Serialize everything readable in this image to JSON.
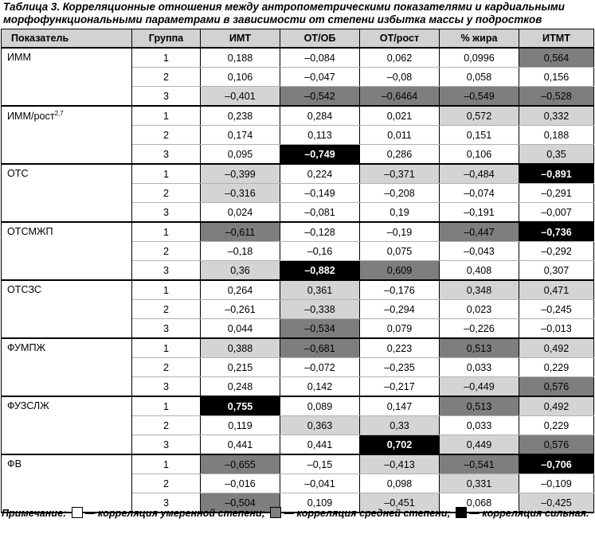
{
  "caption": "Таблица 3. Корреляционные отношения между антропометрическими показателями и кардиальными морфофункциональными параметрами в зависимости от степени избытка массы у подростков",
  "headers": [
    "Показатель",
    "Группа",
    "ИМТ",
    "ОТ/ОБ",
    "ОТ/рост",
    "% жира",
    "ИТМТ"
  ],
  "levels": {
    "moderate": "#d4d4d4",
    "medium": "#7e7e7e",
    "strong": "#000000"
  },
  "rows": [
    {
      "indicator": "ИММ",
      "sup": "",
      "groups": [
        {
          "group": "1",
          "values": [
            "0,188",
            "–0,084",
            "0,062",
            "0,0996",
            "0,564"
          ],
          "levels": [
            "",
            "",
            "",
            "",
            "medium"
          ]
        },
        {
          "group": "2",
          "values": [
            "0,106",
            "–0,047",
            "–0,08",
            "0,058",
            "0,156"
          ],
          "levels": [
            "",
            "",
            "",
            "",
            ""
          ]
        },
        {
          "group": "3",
          "values": [
            "–0,401",
            "–0,542",
            "–0,6464",
            "–0,549",
            "–0,528"
          ],
          "levels": [
            "moderate",
            "medium",
            "medium",
            "medium",
            "medium"
          ]
        }
      ]
    },
    {
      "indicator": "ИММ/рост",
      "sup": "2,7",
      "groups": [
        {
          "group": "1",
          "values": [
            "0,238",
            "0,284",
            "0,021",
            "0,572",
            "0,332"
          ],
          "levels": [
            "",
            "",
            "",
            "moderate",
            "moderate"
          ]
        },
        {
          "group": "2",
          "values": [
            "0,174",
            "0,113",
            "0,011",
            "0,151",
            "0,188"
          ],
          "levels": [
            "",
            "",
            "",
            "",
            ""
          ]
        },
        {
          "group": "3",
          "values": [
            "0,095",
            "–0,749",
            "0,286",
            "0,106",
            "0,35"
          ],
          "levels": [
            "",
            "strong",
            "",
            "",
            "moderate"
          ]
        }
      ]
    },
    {
      "indicator": "ОТС",
      "sup": "",
      "groups": [
        {
          "group": "1",
          "values": [
            "–0,399",
            "0,224",
            "–0,371",
            "–0,484",
            "–0,891"
          ],
          "levels": [
            "moderate",
            "",
            "moderate",
            "moderate",
            "strong"
          ]
        },
        {
          "group": "2",
          "values": [
            "–0,316",
            "–0,149",
            "–0,208",
            "–0,074",
            "–0,291"
          ],
          "levels": [
            "moderate",
            "",
            "",
            "",
            ""
          ]
        },
        {
          "group": "3",
          "values": [
            "0,024",
            "–0,081",
            "0,19",
            "–0,191",
            "–0,007"
          ],
          "levels": [
            "",
            "",
            "",
            "",
            ""
          ]
        }
      ]
    },
    {
      "indicator": "ОТСМЖП",
      "sup": "",
      "groups": [
        {
          "group": "1",
          "values": [
            "–0,611",
            "–0,128",
            "–0,19",
            "–0,447",
            "–0,736"
          ],
          "levels": [
            "medium",
            "",
            "",
            "medium",
            "strong"
          ]
        },
        {
          "group": "2",
          "values": [
            "–0,18",
            "–0,16",
            "0,075",
            "–0,043",
            "–0,292"
          ],
          "levels": [
            "",
            "",
            "",
            "",
            ""
          ]
        },
        {
          "group": "3",
          "values": [
            "0,36",
            "–0,882",
            "0,609",
            "0,408",
            "0,307"
          ],
          "levels": [
            "moderate",
            "strong",
            "medium",
            "",
            ""
          ]
        }
      ]
    },
    {
      "indicator": "ОТСЗС",
      "sup": "",
      "groups": [
        {
          "group": "1",
          "values": [
            "0,264",
            "0,361",
            "–0,176",
            "0,348",
            "0,471"
          ],
          "levels": [
            "",
            "moderate",
            "",
            "moderate",
            "moderate"
          ]
        },
        {
          "group": "2",
          "values": [
            "–0,261",
            "–0,338",
            "–0,294",
            "0,023",
            "–0,245"
          ],
          "levels": [
            "",
            "moderate",
            "",
            "",
            ""
          ]
        },
        {
          "group": "3",
          "values": [
            "0,044",
            "–0,534",
            "0,079",
            "–0,226",
            "–0,013"
          ],
          "levels": [
            "",
            "medium",
            "",
            "",
            ""
          ]
        }
      ]
    },
    {
      "indicator": "ФУМПЖ",
      "sup": "",
      "groups": [
        {
          "group": "1",
          "values": [
            "0,388",
            "–0,681",
            "0,223",
            "0,513",
            "0,492"
          ],
          "levels": [
            "moderate",
            "medium",
            "",
            "medium",
            "moderate"
          ]
        },
        {
          "group": "2",
          "values": [
            "0,215",
            "–0,072",
            "–0,235",
            "0,033",
            "0,229"
          ],
          "levels": [
            "",
            "",
            "",
            "",
            ""
          ]
        },
        {
          "group": "3",
          "values": [
            "0,248",
            "0,142",
            "–0,217",
            "–0,449",
            "0,576"
          ],
          "levels": [
            "",
            "",
            "",
            "moderate",
            "medium"
          ]
        }
      ]
    },
    {
      "indicator": "ФУЗСЛЖ",
      "sup": "",
      "groups": [
        {
          "group": "1",
          "values": [
            "0,755",
            "0,089",
            "0,147",
            "0,513",
            "0,492"
          ],
          "levels": [
            "strong",
            "",
            "",
            "medium",
            "moderate"
          ]
        },
        {
          "group": "2",
          "values": [
            "0,119",
            "0,363",
            "0,33",
            "0,033",
            "0,229"
          ],
          "levels": [
            "",
            "moderate",
            "moderate",
            "",
            ""
          ]
        },
        {
          "group": "3",
          "values": [
            "0,441",
            "0,441",
            "0,702",
            "0,449",
            "0,576"
          ],
          "levels": [
            "",
            "",
            "strong",
            "moderate",
            "medium"
          ]
        }
      ]
    },
    {
      "indicator": "ФВ",
      "sup": "",
      "groups": [
        {
          "group": "1",
          "values": [
            "–0,655",
            "–0,15",
            "–0,413",
            "–0,541",
            "–0,706"
          ],
          "levels": [
            "medium",
            "",
            "moderate",
            "medium",
            "strong"
          ]
        },
        {
          "group": "2",
          "values": [
            "–0,016",
            "–0,041",
            "0,098",
            "0,331",
            "–0,109"
          ],
          "levels": [
            "",
            "",
            "",
            "moderate",
            ""
          ]
        },
        {
          "group": "3",
          "values": [
            "–0,504",
            "0,109",
            "–0,451",
            "0,068",
            "–0,425"
          ],
          "levels": [
            "medium",
            "",
            "moderate",
            "",
            "moderate"
          ]
        }
      ]
    }
  ],
  "note": {
    "label": "Примечание:",
    "moderate": "— корреляция умеренной степени;",
    "medium": "— корреляция средней степени;",
    "strong": "— корреляция сильная."
  }
}
